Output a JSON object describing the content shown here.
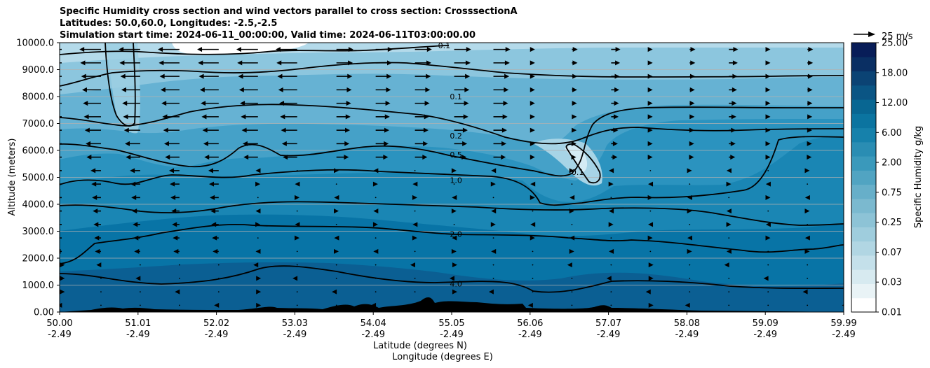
{
  "chart_data": {
    "type": "contour",
    "title": [
      "Specific Humidity cross section and wind vectors parallel to cross section: CrosssectionA",
      "Latitudes: 50.0,60.0, Longitudes: -2.5,-2.5",
      "Simulation start time: 2024-06-11_00:00:00, Valid time: 2024-06-11T03:00:00.00"
    ],
    "xlabel": "Latitude (degrees N)",
    "xlabel2": "Longitude (degrees E)",
    "ylabel": "Altitude (meters)",
    "x_ticks": [
      {
        "lat": "50.00",
        "lon": "-2.49"
      },
      {
        "lat": "51.01",
        "lon": "-2.49"
      },
      {
        "lat": "52.02",
        "lon": "-2.49"
      },
      {
        "lat": "53.03",
        "lon": "-2.49"
      },
      {
        "lat": "54.04",
        "lon": "-2.49"
      },
      {
        "lat": "55.05",
        "lon": "-2.49"
      },
      {
        "lat": "56.06",
        "lon": "-2.49"
      },
      {
        "lat": "57.07",
        "lon": "-2.49"
      },
      {
        "lat": "58.08",
        "lon": "-2.49"
      },
      {
        "lat": "59.09",
        "lon": "-2.49"
      },
      {
        "lat": "59.99",
        "lon": "-2.49"
      }
    ],
    "xlim": [
      50.0,
      59.99
    ],
    "y_ticks": [
      "0.00",
      "1000.0",
      "2000.0",
      "3000.0",
      "4000.0",
      "5000.0",
      "6000.0",
      "7000.0",
      "8000.0",
      "9000.0",
      "10000.0"
    ],
    "ylim": [
      0,
      10000
    ],
    "grid": "horizontal",
    "colorbar": {
      "label": "Specific Humidity g/kg",
      "tick_labels": [
        "0.01",
        "0.03",
        "0.07",
        "0.25",
        "0.75",
        "2.00",
        "6.00",
        "12.00",
        "18.00",
        "25.00"
      ],
      "levels": [
        0.01,
        0.02,
        0.03,
        0.05,
        0.07,
        0.1,
        0.25,
        0.5,
        0.75,
        1.0,
        2.0,
        3.0,
        6.0,
        9.0,
        12.0,
        15.0,
        18.0,
        21.0,
        25.0
      ],
      "colors": [
        "#ffffff",
        "#e9f3f6",
        "#d7eaf0",
        "#c4e0ea",
        "#b1d6e3",
        "#9fcddd",
        "#8dc3d6",
        "#7bb9cf",
        "#67afc9",
        "#51a4c2",
        "#3a99bb",
        "#2a8db3",
        "#1681ab",
        "#0b74a0",
        "#086692",
        "#0a5584",
        "#0b4374",
        "#0a2f63",
        "#081d58"
      ]
    },
    "wind_key": {
      "label": "25 m/s",
      "speed": 25
    },
    "contours": [
      {
        "level": "0.1",
        "label_lat": 54.9,
        "alt_m": 9900
      },
      {
        "level": "0.1",
        "label_lat": 55.05,
        "alt_m": 8000
      },
      {
        "level": "0.2",
        "label_lat": 55.05,
        "alt_m": 6550
      },
      {
        "level": "0.5",
        "label_lat": 55.05,
        "alt_m": 5850
      },
      {
        "level": "1.0",
        "label_lat": 55.05,
        "alt_m": 4900
      },
      {
        "level": "2.0",
        "label_lat": 55.05,
        "alt_m": 2900
      },
      {
        "level": "4.0",
        "label_lat": 55.05,
        "alt_m": 1050
      },
      {
        "level": "0.1",
        "label_lat": 56.6,
        "alt_m": 5200
      }
    ]
  }
}
